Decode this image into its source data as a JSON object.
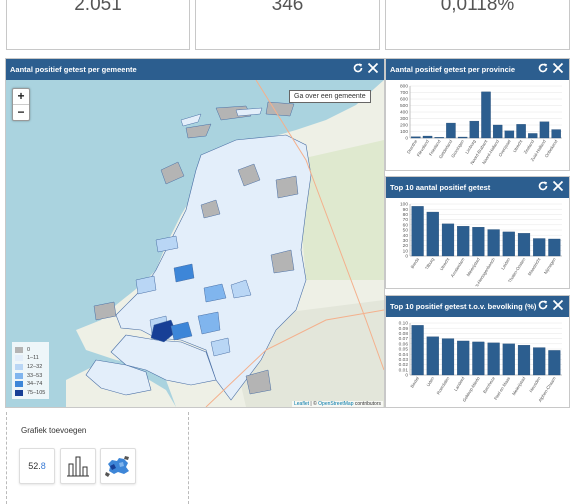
{
  "kpis": {
    "left_value": "2.051",
    "middle_value": "346",
    "right_value": "0,0118%"
  },
  "map_panel": {
    "title": "Aantal positief getest per gemeente",
    "tooltip": "Ga over een gemeente",
    "zoom_in": "+",
    "zoom_out": "−",
    "legend": [
      {
        "label": "0",
        "color": "#b4b4b4"
      },
      {
        "label": "1–11",
        "color": "#e3eefa"
      },
      {
        "label": "12–32",
        "color": "#b9d6f5"
      },
      {
        "label": "33–53",
        "color": "#80b5ee"
      },
      {
        "label": "34–74",
        "color": "#3d86d8"
      },
      {
        "label": "75–105",
        "color": "#173f96"
      }
    ],
    "attribution_leaflet": "Leaflet",
    "attribution_sep": " | © ",
    "attribution_osm": "OpenStreetMap",
    "attribution_rest": " contributors"
  },
  "charts": [
    {
      "panel_title": "Aantal positief getest per provincie",
      "chart_data": {
        "type": "bar",
        "categories": [
          "Drenthe",
          "Flevoland",
          "Friesland",
          "Gelderland",
          "Groningen",
          "Limburg",
          "Noord-Brabant",
          "Noord-Holland",
          "Overijssel",
          "Utrecht",
          "Zeeland",
          "Zuid-Holland",
          "Onbekend"
        ],
        "values": [
          20,
          30,
          10,
          230,
          15,
          260,
          710,
          200,
          110,
          210,
          70,
          250,
          130
        ],
        "ylim": [
          0,
          800
        ],
        "yticks": [
          "800",
          "700",
          "600",
          "500",
          "400",
          "300",
          "200",
          "100",
          "0"
        ],
        "bar_color": "#2c5e8f"
      }
    },
    {
      "panel_title": "Top 10 aantal positief getest",
      "chart_data": {
        "type": "bar",
        "categories": [
          "Breda",
          "Tilburg",
          "Utrecht",
          "Amsterdam",
          "Meierijstad",
          "'s-Hertogenbosch",
          "Leiden",
          "Tholen-Oosten",
          "Maastricht",
          "Nijmegen"
        ],
        "values": [
          105,
          93,
          68,
          63,
          61,
          56,
          51,
          48,
          37,
          36
        ],
        "ylim": [
          0,
          110
        ],
        "yticks": [
          "100",
          "90",
          "80",
          "70",
          "60",
          "50",
          "40",
          "30",
          "20",
          "10",
          "0"
        ],
        "bar_color": "#2c5e8f"
      }
    },
    {
      "panel_title": "Top 10 positief getest t.o.v. bevolking (%)",
      "chart_data": {
        "type": "bar",
        "categories": [
          "Boxtel",
          "Uden",
          "Roerdalen",
          "Landerd",
          "Geldrop-Mierlo",
          "Bernheze",
          "Peel en Maas",
          "Meierijstad",
          "Heusden",
          "Alphen-Chaam"
        ],
        "values": [
          0.105,
          0.081,
          0.077,
          0.072,
          0.07,
          0.068,
          0.066,
          0.063,
          0.058,
          0.052
        ],
        "ylim": [
          0,
          0.11
        ],
        "yticks": [
          "0.10",
          "0.09",
          "0.08",
          "0.07",
          "0.06",
          "0.05",
          "0.04",
          "0.03",
          "0.02",
          "0.01",
          "0"
        ],
        "bar_color": "#2c5e8f"
      }
    }
  ],
  "add_chart": {
    "title": "Grafiek toevoegen",
    "number_icon_int": "52.",
    "number_icon_dec": "8"
  }
}
